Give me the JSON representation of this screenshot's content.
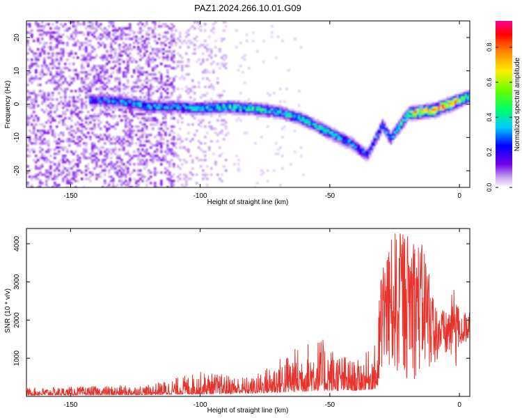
{
  "title": "PAZ1.2024.266.10.01.G09",
  "colors": {
    "snr_line": "#e8322c",
    "spectrogram_scale": [
      "#ffffff",
      "#ecdcfa",
      "#c9a4f2",
      "#9b5bf0",
      "#6a00e8",
      "#0000ff",
      "#00c8ff",
      "#00ff66",
      "#8cff00",
      "#ffe800",
      "#ff8000",
      "#ff0000",
      "#ff0099"
    ]
  },
  "chart_data": [
    {
      "type": "heatmap",
      "xlabel": "Height of straight line (km)",
      "ylabel": "Frequency (Hz)",
      "xlim": [
        -167,
        4
      ],
      "ylim": [
        -25,
        25
      ],
      "xticks": [
        -150,
        -100,
        -50,
        0
      ],
      "yticks": [
        -20,
        -10,
        0,
        10,
        20
      ],
      "colorbar": {
        "label": "Normalized spectral amplitude",
        "range": [
          0,
          0.95
        ],
        "ticks": [
          0.0,
          0.2,
          0.4,
          0.6,
          0.8
        ]
      },
      "ridge": [
        {
          "x": -140,
          "y": 1.5,
          "a": 0.25
        },
        {
          "x": -130,
          "y": 1.0,
          "a": 0.3
        },
        {
          "x": -120,
          "y": -0.5,
          "a": 0.3
        },
        {
          "x": -110,
          "y": -0.5,
          "a": 0.3
        },
        {
          "x": -100,
          "y": -1.0,
          "a": 0.35
        },
        {
          "x": -90,
          "y": -0.5,
          "a": 0.4
        },
        {
          "x": -80,
          "y": -1.0,
          "a": 0.4
        },
        {
          "x": -70,
          "y": -2.0,
          "a": 0.35
        },
        {
          "x": -60,
          "y": -4.5,
          "a": 0.35
        },
        {
          "x": -50,
          "y": -8.5,
          "a": 0.35
        },
        {
          "x": -42,
          "y": -11.5,
          "a": 0.3
        },
        {
          "x": -36,
          "y": -15.0,
          "a": 0.25
        },
        {
          "x": -30,
          "y": -6.0,
          "a": 0.3
        },
        {
          "x": -27,
          "y": -10.0,
          "a": 0.3
        },
        {
          "x": -20,
          "y": -2.5,
          "a": 0.55
        },
        {
          "x": -15,
          "y": -2.0,
          "a": 0.75
        },
        {
          "x": -10,
          "y": -1.5,
          "a": 0.85
        },
        {
          "x": -5,
          "y": 0.0,
          "a": 0.9
        },
        {
          "x": 0,
          "y": 1.5,
          "a": 0.7
        },
        {
          "x": 3,
          "y": 2.5,
          "a": 0.5
        }
      ]
    },
    {
      "type": "line",
      "xlabel": "Height of straight line (km)",
      "ylabel": "SNR (10 * v/v)",
      "xlim": [
        -167,
        4
      ],
      "ylim": [
        0,
        4400
      ],
      "xticks": [
        -150,
        -100,
        -50,
        0
      ],
      "yticks": [
        1000,
        2000,
        3000,
        4000
      ],
      "envelope": [
        {
          "x": -167,
          "lo": 30,
          "hi": 220
        },
        {
          "x": -120,
          "lo": 40,
          "hi": 300
        },
        {
          "x": -100,
          "lo": 60,
          "hi": 650
        },
        {
          "x": -80,
          "lo": 80,
          "hi": 500
        },
        {
          "x": -70,
          "lo": 100,
          "hi": 1000
        },
        {
          "x": -55,
          "lo": 150,
          "hi": 1600
        },
        {
          "x": -40,
          "lo": 150,
          "hi": 900
        },
        {
          "x": -32,
          "lo": 200,
          "hi": 1400
        },
        {
          "x": -30,
          "lo": 400,
          "hi": 3600
        },
        {
          "x": -25,
          "lo": 400,
          "hi": 4300
        },
        {
          "x": -20,
          "lo": 400,
          "hi": 4300
        },
        {
          "x": -13,
          "lo": 500,
          "hi": 3900
        },
        {
          "x": -10,
          "lo": 800,
          "hi": 2500
        },
        {
          "x": -5,
          "lo": 900,
          "hi": 2200
        },
        {
          "x": -1,
          "lo": 600,
          "hi": 3100
        },
        {
          "x": 0,
          "lo": 1200,
          "hi": 2000
        },
        {
          "x": 4,
          "lo": 1400,
          "hi": 2400
        }
      ]
    }
  ]
}
